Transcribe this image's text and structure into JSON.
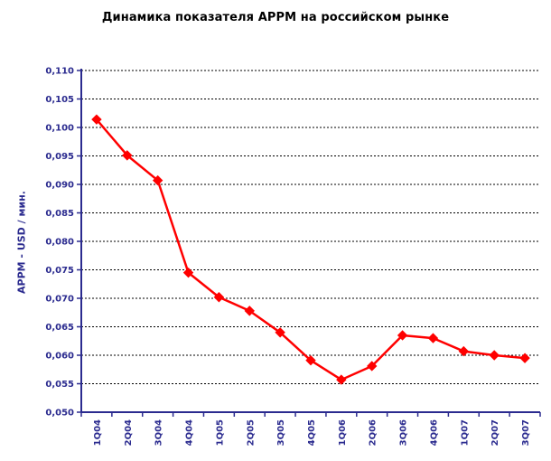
{
  "chart_data": {
    "type": "line",
    "title": "Динамика показателя APPM на российском рынке",
    "xlabel": "",
    "ylabel": "APPM - USD / мин.",
    "categories": [
      "1Q04",
      "2Q04",
      "3Q04",
      "4Q04",
      "1Q05",
      "2Q05",
      "3Q05",
      "4Q05",
      "1Q06",
      "2Q06",
      "3Q06",
      "4Q06",
      "1Q07",
      "2Q07",
      "3Q07"
    ],
    "series": [
      {
        "values": [
          0.1014,
          0.0951,
          0.0907,
          0.0745,
          0.0702,
          0.0678,
          0.064,
          0.0591,
          0.0557,
          0.0581,
          0.0635,
          0.063,
          0.0607,
          0.06,
          0.0595
        ],
        "color": "#ff0000"
      }
    ],
    "ylim": [
      0.05,
      0.11
    ],
    "yticks": [
      "0,050",
      "0,055",
      "0,060",
      "0,065",
      "0,070",
      "0,075",
      "0,080",
      "0,085",
      "0,090",
      "0,095",
      "0,100",
      "0,105",
      "0,110"
    ],
    "grid": true,
    "legend": "none",
    "colors": {
      "axis": "#2b2b8f",
      "grid": "#000000",
      "line": "#ff0000"
    },
    "marker": "diamond-icon"
  }
}
